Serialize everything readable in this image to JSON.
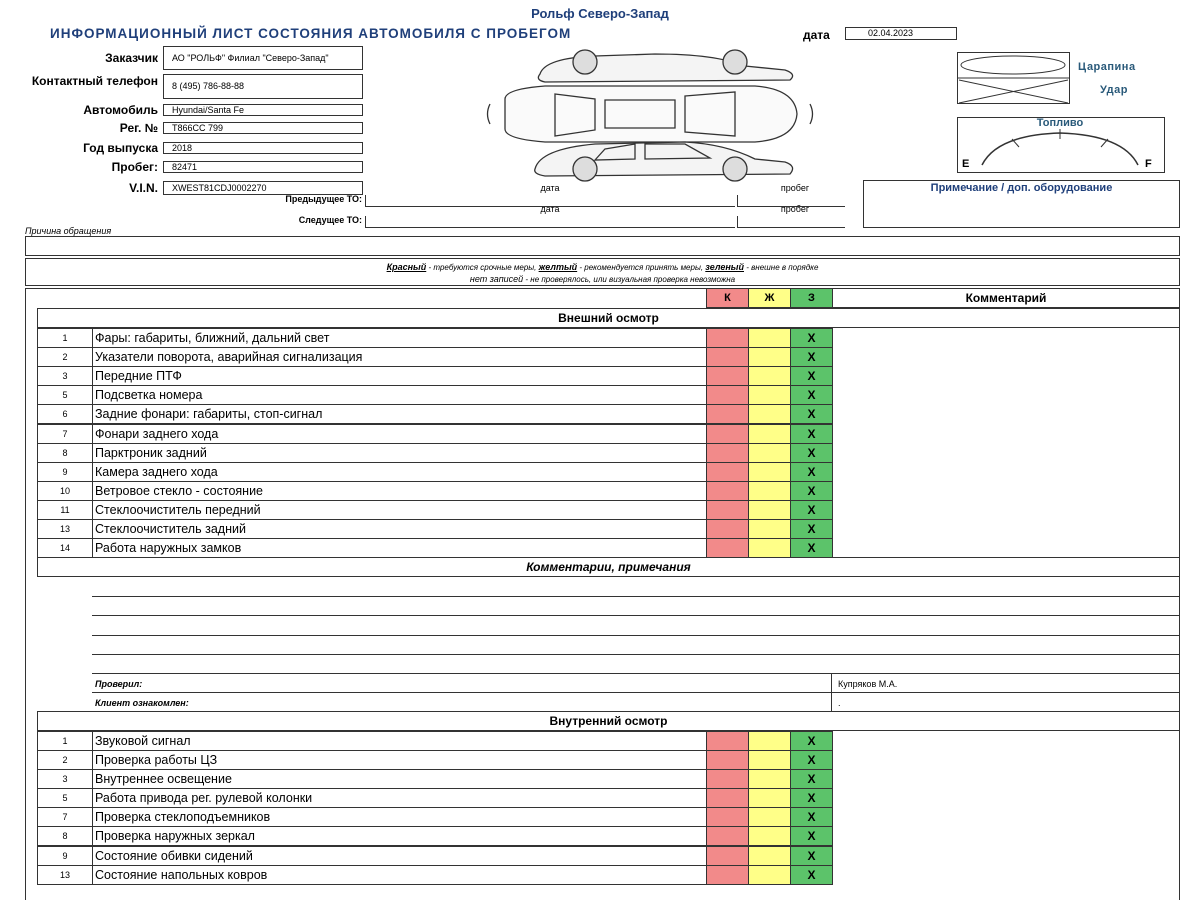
{
  "header": {
    "company": "Рольф Северо-Запад",
    "title": "ИНФОРМАЦИОННЫЙ ЛИСТ СОСТОЯНИЯ АВТОМОБИЛЯ С ПРОБЕГОМ",
    "date_label": "дата",
    "date": "02.04.2023"
  },
  "fields": [
    {
      "label": "Заказчик",
      "value": "АО \"РОЛЬФ\" Филиал \"Северо-Запад\""
    },
    {
      "label": "Контактный телефон",
      "value": "8 (495) 786-88-88"
    },
    {
      "label": "Автомобиль",
      "value": "Hyundai/Santa Fe"
    },
    {
      "label": "Рег. №",
      "value": "Т866СС 799"
    },
    {
      "label": "Год выпуска",
      "value": "2018"
    },
    {
      "label": "Пробег:",
      "value": "82471"
    },
    {
      "label": "V.I.N.",
      "value": "XWEST81CDJ0002270"
    }
  ],
  "service": {
    "date_header": "дата",
    "mileage_header": "пробег",
    "previous": "Предыдущее ТО:",
    "next": "Следущее ТО:"
  },
  "damage_legend": {
    "scratch": "Царапина",
    "hit": "Удар"
  },
  "fuel": {
    "label": "Топливо",
    "empty": "E",
    "full": "F"
  },
  "notes_label": "Примечание / доп. оборудование",
  "reason_label": "Причина обращения",
  "legend": {
    "red": "Красный",
    "red_text": "- требуются срочные меры,",
    "yellow": "желтый",
    "yellow_text": "- рекомендуется принять меры,",
    "green": "зеленый",
    "green_text": "- внешне в порядке",
    "none": "нет записей",
    "none_text": "- не проверялось, или визуальная проверка невозможна"
  },
  "table": {
    "columns": [
      "К",
      "Ж",
      "З",
      "Комментарий"
    ],
    "sections": [
      {
        "title": "Внешний осмотр",
        "rows": [
          {
            "num": 1,
            "name": "Фары: габариты, ближний, дальний свет",
            "mark": "X"
          },
          {
            "num": 2,
            "name": "Указатели поворота, аварийная сигнализация",
            "mark": "X"
          },
          {
            "num": 3,
            "name": "Передние ПТФ",
            "mark": "X"
          },
          {
            "num": 5,
            "name": "Подсветка номера",
            "mark": "X"
          },
          {
            "num": 6,
            "name": "Задние фонари: габариты, стоп-сигнал",
            "mark": "X"
          },
          {
            "num": 7,
            "name": "Фонари заднего хода",
            "mark": "X"
          },
          {
            "num": 8,
            "name": "Парктроник задний",
            "mark": "X"
          },
          {
            "num": 9,
            "name": "Камера заднего хода",
            "mark": "X"
          },
          {
            "num": 10,
            "name": "Ветровое стекло - состояние",
            "mark": "X"
          },
          {
            "num": 11,
            "name": "Стеклоочиститель передний",
            "mark": "X"
          },
          {
            "num": 13,
            "name": "Стеклоочиститель задний",
            "mark": "X"
          },
          {
            "num": 14,
            "name": "Работа наружных замков",
            "mark": "X"
          }
        ]
      },
      {
        "title": "Внутренний осмотр",
        "rows": [
          {
            "num": 1,
            "name": "Звуковой сигнал",
            "mark": "X"
          },
          {
            "num": 2,
            "name": "Проверка работы ЦЗ",
            "mark": "X"
          },
          {
            "num": 3,
            "name": "Внутреннее освещение",
            "mark": "X"
          },
          {
            "num": 5,
            "name": "Работа привода рег. рулевой колонки",
            "mark": "X"
          },
          {
            "num": 7,
            "name": "Проверка стеклоподъемников",
            "mark": "X"
          },
          {
            "num": 8,
            "name": "Проверка наружных зеркал",
            "mark": "X"
          },
          {
            "num": 9,
            "name": "Состояние обивки сидений",
            "mark": "X"
          },
          {
            "num": 13,
            "name": "Состояние напольных ковров",
            "mark": "X"
          }
        ]
      }
    ]
  },
  "comments_title": "Комментарии, примечания",
  "signatures": [
    {
      "label": "Проверил:",
      "value": "Купряков М.А."
    },
    {
      "label": "Клиент ознакомлен:",
      "value": "."
    }
  ]
}
